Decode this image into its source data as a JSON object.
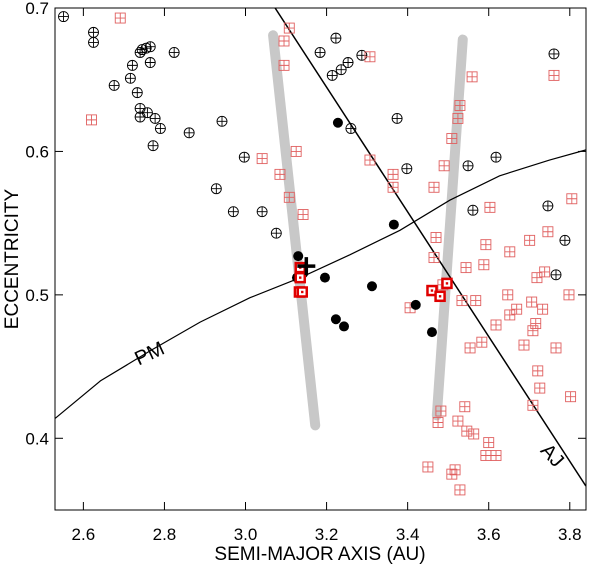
{
  "chart_data": {
    "type": "scatter",
    "xlabel": "SEMI-MAJOR AXIS (AU)",
    "ylabel": "ECCENTRICITY",
    "xlim": [
      2.53,
      3.84
    ],
    "ylim": [
      0.35,
      0.7
    ],
    "xticks": [
      2.6,
      2.8,
      {
        "value": 3,
        "label": "3.0"
      },
      3.2,
      3.4,
      3.6,
      3.8
    ],
    "yticks": [
      0.4,
      0.5,
      0.6,
      0.7
    ],
    "annotations": [
      {
        "text": "PM",
        "x": 2.77,
        "y": 0.455,
        "angle": -25
      },
      {
        "text": "AJ",
        "x": 3.745,
        "y": 0.385,
        "angle": 48
      }
    ],
    "series": [
      {
        "marker": "line",
        "color": "#c8c8c8",
        "line_width": 10,
        "x": [
          3.068,
          3.172
        ],
        "y": [
          0.681,
          0.409
        ]
      },
      {
        "marker": "line",
        "color": "#c8c8c8",
        "line_width": 10,
        "x": [
          3.536,
          3.472
        ],
        "y": [
          0.678,
          0.416
        ]
      },
      {
        "marker": "line",
        "color": "#000000",
        "line_width": 1.5,
        "x": [
          3.073,
          3.839
        ],
        "y": [
          0.7,
          0.367
        ]
      },
      {
        "marker": "line",
        "color": "#000000",
        "line_width": 1.2,
        "x": [
          2.531,
          2.642,
          2.765,
          2.888,
          3.011,
          3.135,
          3.258,
          3.381,
          3.504,
          3.627,
          3.75,
          3.839
        ],
        "y": [
          0.414,
          0.44,
          0.461,
          0.481,
          0.498,
          0.512,
          0.528,
          0.545,
          0.566,
          0.583,
          0.594,
          0.601
        ]
      },
      {
        "marker": "circle-cross",
        "color": "#000000",
        "x": [
          2.551,
          2.625,
          2.625,
          2.676,
          2.716,
          2.721,
          2.733,
          2.74,
          2.745,
          2.755,
          2.765,
          2.765,
          2.74,
          2.74,
          2.758,
          2.777,
          2.79,
          2.772,
          2.824,
          2.861,
          2.928,
          2.942,
          2.997,
          2.97,
          3.041,
          3.076,
          3.184,
          3.223,
          3.214,
          3.236,
          3.253,
          3.26,
          3.287,
          3.374,
          3.398,
          3.549,
          3.561,
          3.618,
          3.746,
          3.761,
          3.788,
          3.766
        ],
        "y": [
          0.694,
          0.683,
          0.676,
          0.646,
          0.651,
          0.66,
          0.641,
          0.669,
          0.671,
          0.672,
          0.673,
          0.662,
          0.63,
          0.624,
          0.627,
          0.623,
          0.616,
          0.604,
          0.669,
          0.613,
          0.574,
          0.621,
          0.596,
          0.558,
          0.558,
          0.543,
          0.669,
          0.679,
          0.653,
          0.657,
          0.662,
          0.616,
          0.667,
          0.623,
          0.588,
          0.59,
          0.559,
          0.596,
          0.562,
          0.668,
          0.538,
          0.514
        ]
      },
      {
        "marker": "square-cross",
        "color": "#e06060",
        "x": [
          2.691,
          2.62,
          3.095,
          3.108,
          3.095,
          3.125,
          3.041,
          3.085,
          3.108,
          3.142,
          3.307,
          3.307,
          3.364,
          3.364,
          3.465,
          3.47,
          3.465,
          3.49,
          3.509,
          3.529,
          3.559,
          3.524,
          3.487,
          3.544,
          3.534,
          3.568,
          3.593,
          3.588,
          3.603,
          3.554,
          3.583,
          3.618,
          3.652,
          3.647,
          3.669,
          3.701,
          3.738,
          3.746,
          3.652,
          3.687,
          3.719,
          3.706,
          3.716,
          3.733,
          3.766,
          3.709,
          3.721,
          3.709,
          3.726,
          3.798,
          3.805,
          3.802,
          3.761,
          3.482,
          3.475,
          3.541,
          3.524,
          3.563,
          3.546,
          3.6,
          3.593,
          3.618,
          3.45,
          3.517,
          3.509,
          3.529,
          3.406
        ],
        "y": [
          0.693,
          0.622,
          0.677,
          0.686,
          0.66,
          0.6,
          0.595,
          0.584,
          0.568,
          0.556,
          0.666,
          0.594,
          0.584,
          0.575,
          0.575,
          0.54,
          0.526,
          0.59,
          0.609,
          0.632,
          0.652,
          0.623,
          0.507,
          0.519,
          0.496,
          0.496,
          0.535,
          0.521,
          0.561,
          0.463,
          0.467,
          0.479,
          0.53,
          0.5,
          0.49,
          0.538,
          0.516,
          0.544,
          0.486,
          0.465,
          0.512,
          0.495,
          0.48,
          0.49,
          0.463,
          0.475,
          0.447,
          0.423,
          0.435,
          0.5,
          0.567,
          0.429,
          0.653,
          0.419,
          0.411,
          0.422,
          0.412,
          0.403,
          0.405,
          0.397,
          0.388,
          0.388,
          0.38,
          0.378,
          0.375,
          0.364,
          0.491
        ]
      },
      {
        "marker": "filled-circle",
        "color": "#000000",
        "x": [
          3.228,
          3.366,
          3.13,
          3.127,
          3.142,
          3.196,
          3.312,
          3.243,
          3.223,
          3.42,
          3.46
        ],
        "y": [
          0.62,
          0.549,
          0.527,
          0.512,
          0.515,
          0.512,
          0.506,
          0.478,
          0.483,
          0.493,
          0.474
        ]
      },
      {
        "marker": "bold-square",
        "color": "#e00000",
        "x": [
          3.135,
          3.135,
          3.133,
          3.14,
          3.46,
          3.48,
          3.497
        ],
        "y": [
          0.519,
          0.512,
          0.502,
          0.502,
          0.503,
          0.499,
          0.508
        ]
      },
      {
        "marker": "plus",
        "color": "#000000",
        "x": [
          3.15
        ],
        "y": [
          0.52
        ]
      }
    ]
  }
}
